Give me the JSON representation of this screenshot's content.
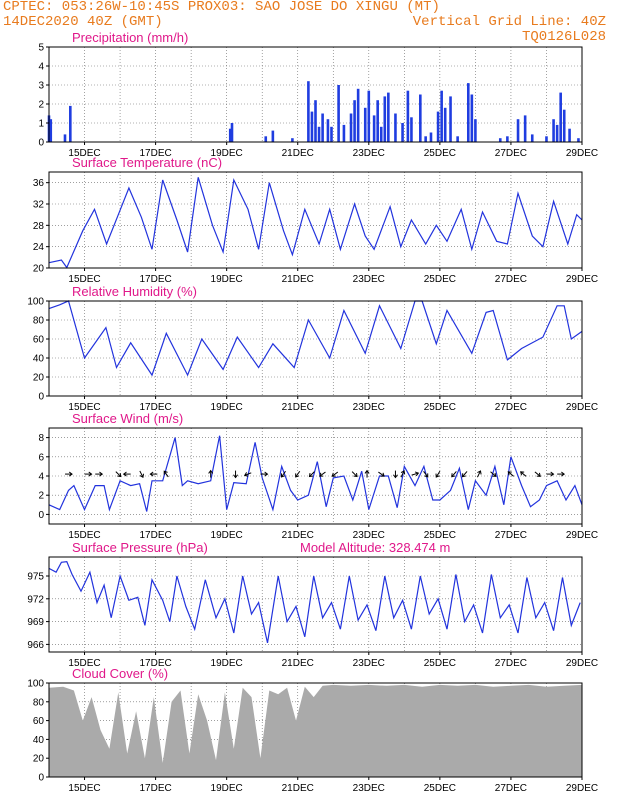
{
  "header": {
    "line1_left": "CPTEC:  053:26W-10:45S  PROX03: SAO JOSE DO XINGU (MT)",
    "line2_left": "14DEC2020 40Z (GMT)",
    "line2_right": "Vertical Grid Line: 40Z",
    "line3_right": "TQ0126L028"
  },
  "colors": {
    "line": "#2233dd",
    "bar": "#1f3de0",
    "cloud": "#aaaaaa",
    "title": "#e0188a",
    "header": "#e87b1e"
  },
  "x_tick_labels": [
    "15DEC",
    "17DEC",
    "19DEC",
    "21DEC",
    "23DEC",
    "25DEC",
    "27DEC",
    "29DEC"
  ],
  "chart_data": [
    {
      "type": "bar",
      "id": "precip",
      "title": "Precipitation (mm/h)",
      "x_range_days": [
        14.0,
        29.0
      ],
      "ylim": [
        0,
        5
      ],
      "yticks": [
        "0",
        "1",
        "2",
        "3",
        "4",
        "5"
      ],
      "grid": true,
      "x": [
        14.0,
        14.05,
        14.45,
        14.6,
        19.1,
        19.15,
        20.1,
        20.3,
        20.85,
        21.3,
        21.4,
        21.5,
        21.6,
        21.7,
        21.85,
        21.95,
        22.15,
        22.3,
        22.5,
        22.6,
        22.7,
        22.9,
        23.0,
        23.15,
        23.25,
        23.35,
        23.45,
        23.55,
        23.75,
        23.95,
        24.1,
        24.2,
        24.45,
        24.6,
        24.75,
        24.95,
        25.05,
        25.15,
        25.3,
        25.5,
        25.8,
        25.9,
        26.0,
        26.7,
        26.9,
        27.2,
        27.4,
        27.6,
        28.0,
        28.2,
        28.3,
        28.4,
        28.5,
        28.65,
        28.9
      ],
      "values": [
        1.4,
        1.2,
        0.4,
        1.9,
        0.7,
        1.0,
        0.3,
        0.6,
        0.2,
        3.2,
        1.6,
        2.2,
        0.8,
        1.5,
        1.2,
        0.8,
        3.0,
        0.9,
        1.5,
        2.2,
        2.8,
        1.8,
        2.7,
        1.4,
        2.2,
        0.8,
        2.4,
        2.6,
        1.5,
        1.0,
        2.7,
        1.3,
        2.5,
        0.3,
        0.5,
        1.6,
        2.7,
        1.8,
        2.4,
        0.3,
        3.1,
        2.5,
        1.2,
        0.2,
        0.3,
        1.2,
        1.4,
        0.4,
        0.3,
        1.2,
        0.9,
        2.6,
        1.7,
        0.7,
        0.2
      ]
    },
    {
      "type": "line",
      "id": "temp",
      "title": "Surface Temperature (nC)",
      "x_range_days": [
        14.0,
        29.0
      ],
      "ylim": [
        20,
        38
      ],
      "yticks": [
        "20",
        "24",
        "28",
        "32",
        "36"
      ],
      "grid": true,
      "x": [
        14.0,
        14.35,
        14.5,
        14.95,
        15.28,
        15.62,
        15.95,
        16.25,
        16.6,
        16.9,
        17.2,
        17.6,
        17.9,
        18.2,
        18.6,
        18.9,
        19.2,
        19.6,
        19.9,
        20.2,
        20.6,
        20.85,
        21.2,
        21.6,
        21.9,
        22.2,
        22.6,
        22.9,
        23.15,
        23.6,
        23.9,
        24.2,
        24.6,
        24.9,
        25.2,
        25.6,
        25.9,
        26.2,
        26.6,
        26.9,
        27.2,
        27.6,
        27.9,
        28.2,
        28.6,
        28.85,
        29.0
      ],
      "values": [
        21.0,
        21.5,
        20.1,
        27.0,
        31.0,
        24.5,
        30.0,
        35.0,
        29.5,
        23.5,
        36.5,
        29.0,
        23.0,
        37.0,
        28.0,
        23.0,
        36.5,
        31.0,
        23.5,
        36.0,
        27.0,
        22.5,
        31.0,
        24.5,
        31.0,
        23.5,
        32.0,
        26.0,
        23.5,
        31.5,
        24.0,
        29.0,
        24.5,
        28.0,
        25.0,
        31.0,
        23.5,
        30.5,
        25.0,
        24.5,
        34.0,
        26.0,
        24.0,
        32.5,
        24.5,
        30.0,
        29.0
      ]
    },
    {
      "type": "line",
      "id": "rh",
      "title": "Relative Humidity (%)",
      "x_range_days": [
        14.0,
        29.0
      ],
      "ylim": [
        0,
        100
      ],
      "yticks": [
        "0",
        "20",
        "40",
        "60",
        "80",
        "100"
      ],
      "grid": true,
      "x": [
        14.0,
        14.3,
        14.55,
        15.0,
        15.6,
        15.9,
        16.3,
        16.9,
        17.3,
        17.9,
        18.3,
        18.9,
        19.3,
        19.9,
        20.3,
        20.9,
        21.3,
        21.9,
        22.3,
        22.9,
        23.3,
        23.9,
        24.3,
        24.5,
        24.9,
        25.2,
        25.9,
        26.3,
        26.5,
        26.9,
        27.3,
        27.9,
        28.3,
        28.5,
        28.7,
        29.0
      ],
      "values": [
        92.0,
        96.0,
        100.0,
        40.0,
        72.0,
        30.0,
        56.0,
        22.0,
        66.0,
        22.0,
        60.0,
        28.0,
        62.0,
        30.0,
        55.0,
        30.0,
        80.0,
        40.0,
        90.0,
        45.0,
        95.0,
        50.0,
        100.0,
        100.0,
        55.0,
        90.0,
        45.0,
        88.0,
        90.0,
        38.0,
        50.0,
        62.0,
        95.0,
        95.0,
        60.0,
        68.0
      ]
    },
    {
      "type": "line",
      "id": "wind",
      "title": "Surface Wind (m/s)",
      "x_range_days": [
        14.0,
        29.0
      ],
      "ylim": [
        -1,
        9
      ],
      "yticks": [
        "0",
        "2",
        "4",
        "6",
        "8"
      ],
      "grid": true,
      "x": [
        14.0,
        14.3,
        14.55,
        14.7,
        15.0,
        15.3,
        15.55,
        15.7,
        16.0,
        16.3,
        16.55,
        16.75,
        16.9,
        17.2,
        17.55,
        17.75,
        17.9,
        18.2,
        18.55,
        18.8,
        19.0,
        19.2,
        19.55,
        19.8,
        20.0,
        20.3,
        20.55,
        20.8,
        21.0,
        21.3,
        21.55,
        21.8,
        22.0,
        22.3,
        22.55,
        22.8,
        23.0,
        23.3,
        23.55,
        23.8,
        24.0,
        24.3,
        24.55,
        24.8,
        25.0,
        25.3,
        25.55,
        25.8,
        26.0,
        26.3,
        26.55,
        26.8,
        27.0,
        27.3,
        27.55,
        27.8,
        28.0,
        28.3,
        28.55,
        28.8,
        29.0
      ],
      "values": [
        1.0,
        0.5,
        2.5,
        3.0,
        0.5,
        3.0,
        3.0,
        0.5,
        3.5,
        3.0,
        3.2,
        0.3,
        3.5,
        3.5,
        8.0,
        3.0,
        3.5,
        3.2,
        3.5,
        8.2,
        0.5,
        3.3,
        3.2,
        7.5,
        3.8,
        0.5,
        5.0,
        2.5,
        1.5,
        2.0,
        5.5,
        0.8,
        3.8,
        4.0,
        1.5,
        4.5,
        0.5,
        4.0,
        4.0,
        0.7,
        5.0,
        3.0,
        5.0,
        1.5,
        1.5,
        2.5,
        4.8,
        0.5,
        3.5,
        2.0,
        5.0,
        1.0,
        6.0,
        3.0,
        0.8,
        1.5,
        3.0,
        3.5,
        1.5,
        3.0,
        1.0
      ]
    },
    {
      "type": "line",
      "id": "pressure",
      "title": "Surface Pressure (hPa)",
      "subtitle": "Model Altitude: 328.474 m",
      "x_range_days": [
        14.0,
        29.0
      ],
      "ylim": [
        965,
        977.5
      ],
      "yticks": [
        "966",
        "969",
        "972",
        "975"
      ],
      "grid": true,
      "x": [
        14.0,
        14.2,
        14.35,
        14.5,
        14.65,
        14.9,
        15.15,
        15.35,
        15.55,
        15.75,
        16.0,
        16.25,
        16.5,
        16.7,
        16.9,
        17.2,
        17.4,
        17.6,
        17.85,
        18.1,
        18.4,
        18.7,
        18.95,
        19.2,
        19.45,
        19.7,
        19.9,
        20.15,
        20.45,
        20.7,
        20.95,
        21.2,
        21.45,
        21.7,
        21.95,
        22.2,
        22.45,
        22.7,
        22.95,
        23.2,
        23.45,
        23.7,
        23.95,
        24.2,
        24.45,
        24.7,
        24.95,
        25.2,
        25.45,
        25.7,
        25.95,
        26.2,
        26.45,
        26.7,
        26.95,
        27.2,
        27.45,
        27.7,
        27.95,
        28.2,
        28.45,
        28.7,
        28.95
      ],
      "values": [
        976.0,
        975.5,
        976.8,
        976.9,
        975.2,
        973.0,
        975.5,
        971.5,
        973.8,
        969.5,
        975.0,
        971.8,
        972.2,
        968.5,
        974.5,
        971.8,
        969.0,
        975.0,
        971.0,
        968.0,
        974.5,
        969.5,
        972.0,
        967.5,
        975.0,
        970.0,
        971.5,
        966.2,
        975.0,
        969.0,
        971.0,
        967.0,
        975.0,
        969.5,
        971.5,
        968.0,
        975.0,
        969.2,
        971.2,
        967.8,
        975.0,
        969.5,
        971.8,
        968.0,
        975.0,
        970.0,
        972.0,
        968.0,
        975.2,
        969.0,
        971.2,
        967.5,
        975.2,
        969.5,
        971.2,
        967.5,
        974.8,
        969.5,
        971.5,
        967.8,
        974.8,
        968.5,
        971.5
      ]
    },
    {
      "type": "area",
      "id": "cloud",
      "title": "Cloud Cover (%)",
      "x_range_days": [
        14.0,
        29.0
      ],
      "ylim": [
        0,
        100
      ],
      "yticks": [
        "0",
        "20",
        "40",
        "60",
        "80",
        "100"
      ],
      "grid": true,
      "x": [
        14.0,
        14.4,
        14.7,
        14.95,
        15.2,
        15.45,
        15.7,
        15.95,
        16.2,
        16.45,
        16.7,
        16.95,
        17.2,
        17.45,
        17.7,
        17.95,
        18.2,
        18.45,
        18.7,
        18.95,
        19.2,
        19.45,
        19.7,
        19.95,
        20.2,
        20.45,
        20.7,
        20.95,
        21.2,
        21.45,
        21.7,
        22.0,
        22.5,
        23.0,
        23.5,
        24.0,
        24.5,
        25.0,
        25.5,
        26.0,
        26.5,
        27.0,
        27.5,
        28.0,
        28.5,
        29.0
      ],
      "values": [
        95.0,
        96.0,
        92.0,
        60.0,
        85.0,
        50.0,
        30.0,
        90.0,
        25.0,
        70.0,
        20.0,
        85.0,
        15.0,
        80.0,
        92.0,
        25.0,
        88.0,
        60.0,
        18.0,
        90.0,
        30.0,
        95.0,
        85.0,
        20.0,
        92.0,
        88.0,
        95.0,
        60.0,
        96.0,
        85.0,
        97.0,
        98.0,
        97.0,
        98.0,
        97.0,
        98.0,
        96.0,
        98.0,
        97.0,
        98.0,
        96.0,
        97.0,
        98.0,
        96.0,
        97.0,
        98.0
      ]
    }
  ],
  "wind_arrows": {
    "x": [
      14.55,
      15.1,
      15.4,
      15.95,
      16.2,
      16.6,
      16.95,
      17.3,
      18.55,
      19.25,
      19.6,
      20.05,
      20.6,
      21.0,
      21.4,
      21.7,
      22.05,
      22.6,
      22.95,
      23.35,
      23.75,
      23.95,
      24.3,
      24.6,
      24.95,
      25.4,
      25.7,
      26.1,
      26.5,
      27.0,
      27.35,
      27.75,
      28.1,
      28.4
    ],
    "u": [
      1,
      1,
      1,
      1,
      -1,
      0.5,
      -1,
      -0.5,
      0,
      0,
      -1,
      1,
      -0.5,
      -0.5,
      -0.7,
      -0.7,
      -0.4,
      0.7,
      0,
      0.7,
      0,
      0.4,
      1,
      0.6,
      -0.5,
      -0.6,
      -0.6,
      0.3,
      0.7,
      -0.6,
      -0.6,
      0.6,
      1,
      1
    ],
    "v": [
      0,
      0,
      0,
      -1,
      0,
      -1,
      0,
      0.7,
      1,
      -1,
      -0.4,
      0,
      -0.7,
      -0.7,
      -0.7,
      -0.5,
      -0.3,
      -0.7,
      1,
      -0.5,
      -1,
      0.8,
      0.3,
      -0.8,
      -0.8,
      -0.7,
      -0.7,
      0.6,
      -0.6,
      0.5,
      0.5,
      -0.5,
      0,
      0
    ]
  }
}
